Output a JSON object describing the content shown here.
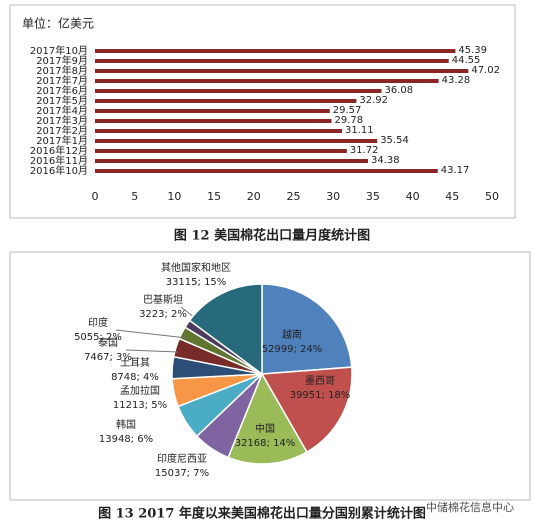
{
  "chart_data": [
    {
      "type": "bar",
      "orientation": "horizontal",
      "title": "单位：亿美元",
      "caption": "图 12  美国棉花出口量月度统计图",
      "categories": [
        "2017年10月",
        "2017年9月",
        "2017年8月",
        "2017年7月",
        "2017年6月",
        "2017年5月",
        "2017年4月",
        "2017年3月",
        "2017年2月",
        "2017年1月",
        "2016年12月",
        "2016年11月",
        "2016年10月"
      ],
      "values": [
        45.39,
        44.55,
        47.02,
        43.28,
        36.08,
        32.92,
        29.57,
        29.78,
        31.11,
        35.54,
        31.72,
        34.38,
        43.17
      ],
      "color": "#8b2626",
      "xlim": [
        0,
        50
      ],
      "xticks": [
        0,
        5,
        10,
        15,
        20,
        25,
        30,
        35,
        40,
        45,
        50
      ]
    },
    {
      "type": "pie",
      "caption": "图 13 2017 年度以来美国棉花出口量分国别累计统计图",
      "categories": [
        "越南",
        "墨西哥",
        "中国",
        "印度尼西亚",
        "韩国",
        "孟加拉国",
        "土耳其",
        "泰国",
        "印度",
        "巴基斯坦",
        "其他国家和地区"
      ],
      "values": [
        52999,
        39951,
        32168,
        15037,
        13948,
        11213,
        8748,
        7467,
        5055,
        3223,
        33115
      ],
      "value_labels": [
        "52999; 24%",
        "39951; 18%",
        "32168; 14%",
        "15037; 7%",
        "13948; 6%",
        "11213; 5%",
        "8748; 4%",
        "7467; 3%",
        "5055; 2%",
        "3223; 2%",
        "33115; 15%"
      ],
      "colors": [
        "#4f81bd",
        "#c0504d",
        "#9bbb59",
        "#8064a2",
        "#4bacc6",
        "#f79646",
        "#2c4d75",
        "#772c2a",
        "#5f7530",
        "#4d3b62",
        "#276a7c"
      ]
    }
  ],
  "watermark": "中储棉花信息中心"
}
